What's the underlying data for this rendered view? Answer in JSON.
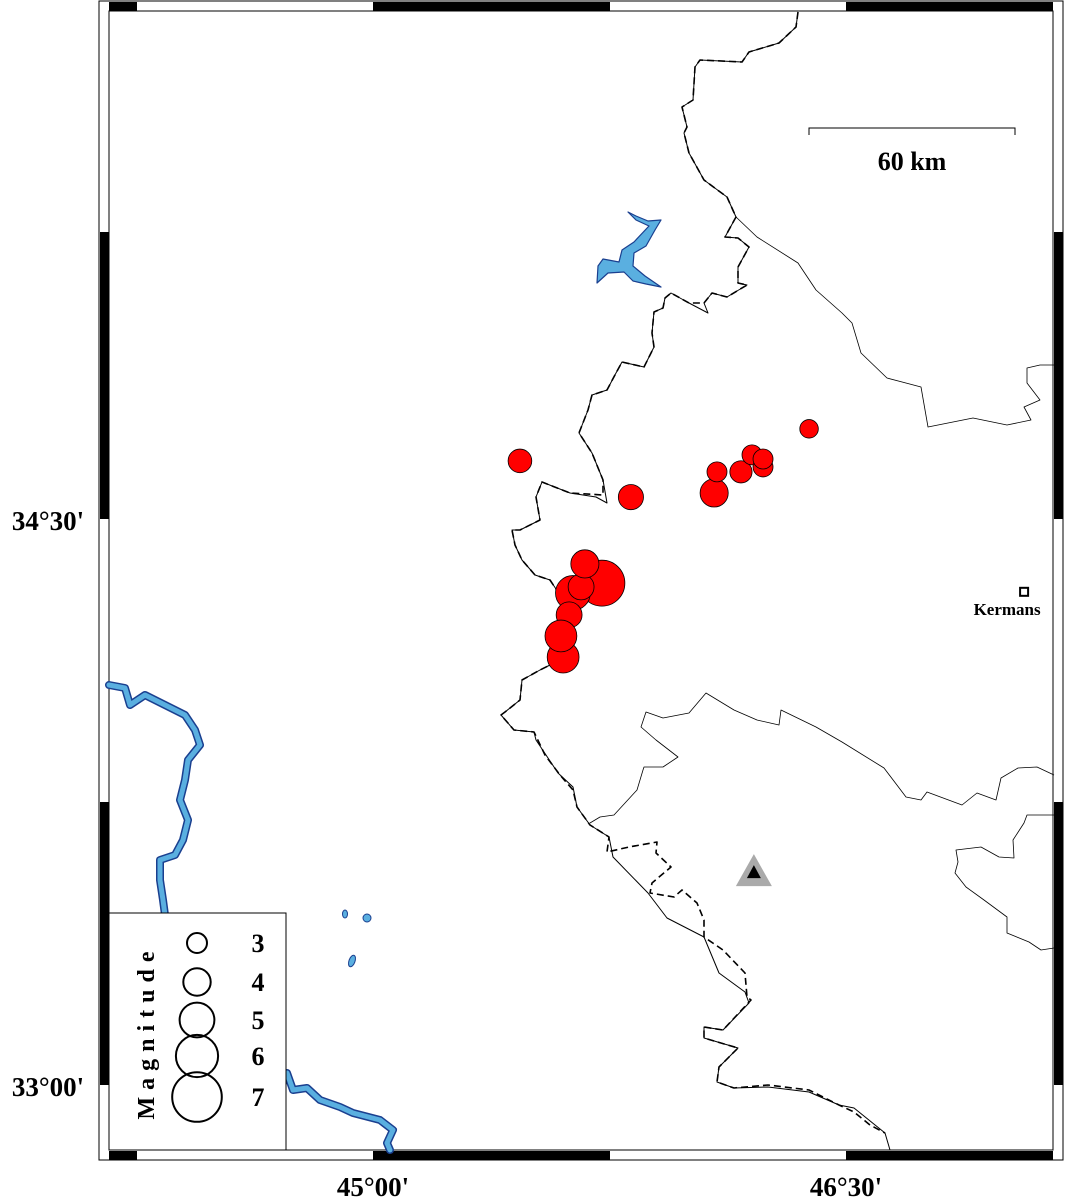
{
  "map": {
    "axis_labels": {
      "lat_top": "34°30'",
      "lat_bottom": "33°00'",
      "lon_left": "45°00'",
      "lon_right": "46°30'"
    },
    "graticule": {
      "lon": [
        45.0,
        46.5
      ],
      "lat": [
        34.5,
        33.0
      ]
    },
    "scale_bar": {
      "label": "60 km"
    },
    "city": {
      "name": "Kermans",
      "lon": 47.065,
      "lat": 34.307
    },
    "station": {
      "lon": 46.208,
      "lat": 33.564,
      "color": "#aaaaaa",
      "inner_color": "#000000"
    },
    "colors": {
      "event": "#ff0000",
      "water": "#5aafe0",
      "water_outline": "#1a3f8f"
    }
  },
  "legend": {
    "title": "Magnitude",
    "items": [
      {
        "mag": 3,
        "label": "3"
      },
      {
        "mag": 4,
        "label": "4"
      },
      {
        "mag": 5,
        "label": "5"
      },
      {
        "mag": 6,
        "label": "6"
      },
      {
        "mag": 7,
        "label": "7"
      }
    ]
  },
  "events": [
    {
      "lon": 45.726,
      "lat": 34.33,
      "mag": 6.5
    },
    {
      "lon": 45.466,
      "lat": 34.654,
      "mag": 3.5
    },
    {
      "lon": 45.818,
      "lat": 34.558,
      "mag": 3.7
    },
    {
      "lon": 46.082,
      "lat": 34.569,
      "mag": 4.1
    },
    {
      "lon": 46.091,
      "lat": 34.625,
      "mag": 3.0
    },
    {
      "lon": 46.167,
      "lat": 34.625,
      "mag": 3.3
    },
    {
      "lon": 46.202,
      "lat": 34.67,
      "mag": 3.0
    },
    {
      "lon": 46.237,
      "lat": 34.638,
      "mag": 3.0
    },
    {
      "lon": 46.237,
      "lat": 34.659,
      "mag": 3.0
    },
    {
      "lon": 46.383,
      "lat": 34.739,
      "mag": 2.8
    },
    {
      "lon": 45.634,
      "lat": 34.304,
      "mag": 5.0
    },
    {
      "lon": 45.66,
      "lat": 34.32,
      "mag": 3.8
    },
    {
      "lon": 45.672,
      "lat": 34.381,
      "mag": 4.1
    },
    {
      "lon": 45.622,
      "lat": 34.246,
      "mag": 3.8
    },
    {
      "lon": 45.603,
      "lat": 34.134,
      "mag": 4.6
    },
    {
      "lon": 45.596,
      "lat": 34.19,
      "mag": 4.6
    }
  ]
}
